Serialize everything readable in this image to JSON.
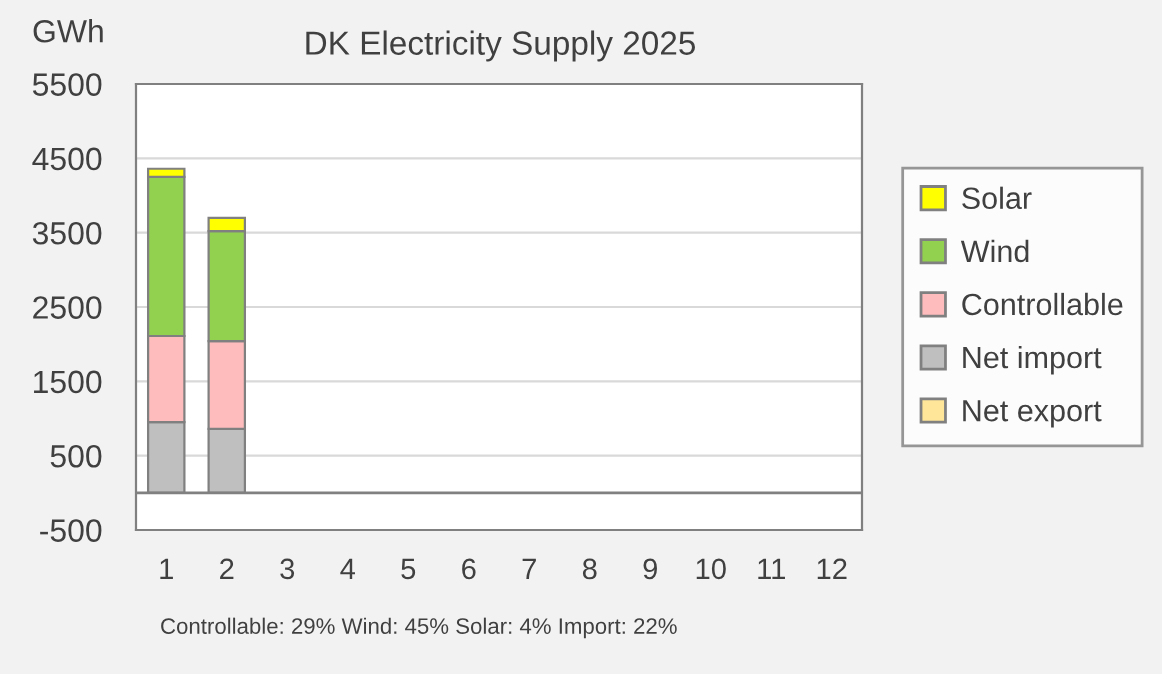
{
  "chart_data": {
    "type": "bar",
    "title": "DK Electricity Supply 2025",
    "ylabel": "GWh",
    "categories": [
      "1",
      "2",
      "3",
      "4",
      "5",
      "6",
      "7",
      "8",
      "9",
      "10",
      "11",
      "12"
    ],
    "stacked": true,
    "series": [
      {
        "name": "Net import",
        "color": "#bfbfbf",
        "values": [
          950,
          860,
          null,
          null,
          null,
          null,
          null,
          null,
          null,
          null,
          null,
          null
        ]
      },
      {
        "name": "Controllable",
        "color": "#ffbcbc",
        "values": [
          1160,
          1180,
          null,
          null,
          null,
          null,
          null,
          null,
          null,
          null,
          null,
          null
        ]
      },
      {
        "name": "Wind",
        "color": "#92d050",
        "values": [
          2140,
          1480,
          null,
          null,
          null,
          null,
          null,
          null,
          null,
          null,
          null,
          null
        ]
      },
      {
        "name": "Solar",
        "color": "#ffff00",
        "values": [
          110,
          180,
          null,
          null,
          null,
          null,
          null,
          null,
          null,
          null,
          null,
          null
        ]
      },
      {
        "name": "Net export",
        "color": "#ffe699",
        "values": [
          null,
          null,
          null,
          null,
          null,
          null,
          null,
          null,
          null,
          null,
          null,
          null
        ]
      }
    ],
    "ylim": [
      -500,
      5500
    ],
    "yticks": [
      -500,
      500,
      1500,
      2500,
      3500,
      4500,
      5500
    ],
    "grid": "y",
    "legend": "right",
    "annotations": [
      "Controllable: 29% Wind: 45% Solar: 4% Import: 22%"
    ]
  }
}
